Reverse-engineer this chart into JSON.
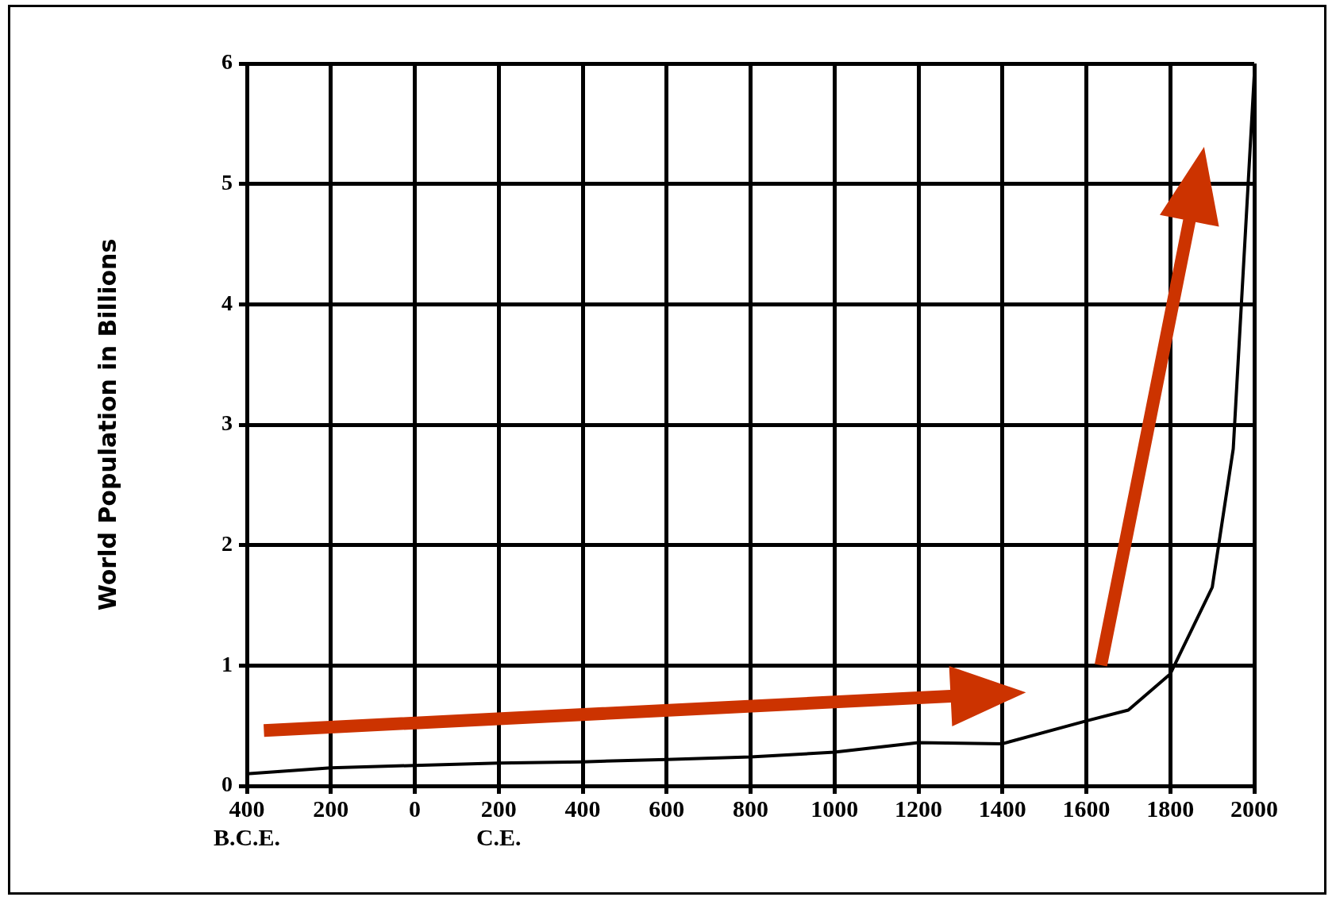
{
  "chart_data": {
    "type": "line",
    "ylabel": "World Population in Billions",
    "x": [
      -400,
      -200,
      0,
      200,
      400,
      600,
      800,
      1000,
      1200,
      1400,
      1600,
      1700,
      1800,
      1900,
      1950,
      2000
    ],
    "series": [
      {
        "color": "#000000",
        "values": [
          0.1,
          0.15,
          0.17,
          0.19,
          0.2,
          0.22,
          0.24,
          0.28,
          0.36,
          0.35,
          0.54,
          0.63,
          0.93,
          1.65,
          2.8,
          5.9
        ]
      }
    ],
    "xlim": [
      -400,
      2000
    ],
    "xticks": [
      {
        "value": -400,
        "label": "400\nB.C.E."
      },
      {
        "value": -200,
        "label": "200"
      },
      0,
      {
        "value": 200,
        "label": "200\nC.E."
      },
      400,
      600,
      800,
      1000,
      1200,
      1400,
      1600,
      1800,
      2000
    ],
    "ylim": [
      0,
      6
    ],
    "yticks": [
      0,
      1,
      2,
      3,
      4,
      5,
      6
    ],
    "grid": true,
    "legend": false,
    "marker": "none",
    "line_style": "solid"
  }
}
